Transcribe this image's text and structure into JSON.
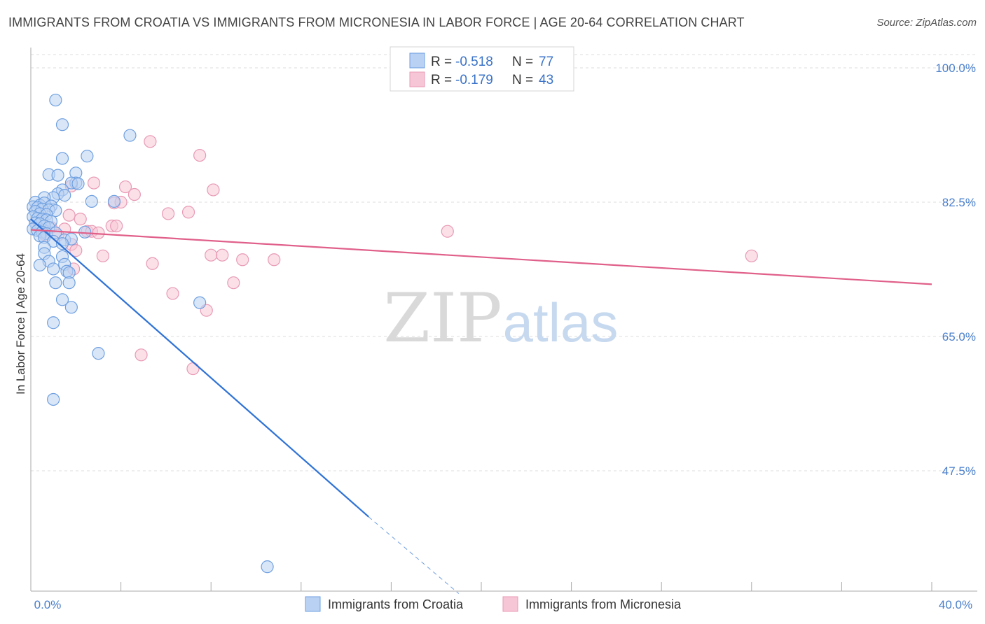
{
  "title": "IMMIGRANTS FROM CROATIA VS IMMIGRANTS FROM MICRONESIA IN LABOR FORCE | AGE 20-64 CORRELATION CHART",
  "source": "Source: ZipAtlas.com",
  "watermark": {
    "zip": "ZIP",
    "atlas": "atlas"
  },
  "chart_data": {
    "type": "scatter",
    "title": "IMMIGRANTS FROM CROATIA VS IMMIGRANTS FROM MICRONESIA IN LABOR FORCE | AGE 20-64 CORRELATION CHART",
    "xlabel": "",
    "ylabel": "In Labor Force | Age 20-64",
    "xlim": [
      0,
      40
    ],
    "ylim": [
      30,
      102
    ],
    "x_tick_labels": {
      "min": "0.0%",
      "max": "40.0%"
    },
    "y_ticks": [
      {
        "value": 100,
        "label": "100.0%"
      },
      {
        "value": 82.5,
        "label": "82.5%"
      },
      {
        "value": 65,
        "label": "65.0%"
      },
      {
        "value": 47.5,
        "label": "47.5%"
      }
    ],
    "legend": {
      "r_label": "R =",
      "n_label": "N ="
    },
    "series": [
      {
        "name": "Immigrants from Croatia",
        "color": "#6fa0e0",
        "fill": "#b9d1f3",
        "line_color": "#2f73d6",
        "R": "-0.518",
        "N": "77",
        "trend": {
          "x0": 0.0,
          "y0": 80.3,
          "x1": 15.0,
          "y1": 41.5,
          "dash_x1": 19.0,
          "dash_y1": 31.5
        },
        "points": [
          [
            1.1,
            95.8
          ],
          [
            1.4,
            92.6
          ],
          [
            4.4,
            91.2
          ],
          [
            1.4,
            88.2
          ],
          [
            2.5,
            88.5
          ],
          [
            0.8,
            86.1
          ],
          [
            1.2,
            86.0
          ],
          [
            2.0,
            86.3
          ],
          [
            2.0,
            85.0
          ],
          [
            1.8,
            85.0
          ],
          [
            2.1,
            84.9
          ],
          [
            1.4,
            84.1
          ],
          [
            1.2,
            83.6
          ],
          [
            1.5,
            83.4
          ],
          [
            1.0,
            83.1
          ],
          [
            0.6,
            83.1
          ],
          [
            0.2,
            82.5
          ],
          [
            0.4,
            82.1
          ],
          [
            0.6,
            82.4
          ],
          [
            0.9,
            82.0
          ],
          [
            2.7,
            82.6
          ],
          [
            3.7,
            82.6
          ],
          [
            0.1,
            81.9
          ],
          [
            0.3,
            81.8
          ],
          [
            0.5,
            81.6
          ],
          [
            0.8,
            81.5
          ],
          [
            1.1,
            81.4
          ],
          [
            0.2,
            81.3
          ],
          [
            0.4,
            81.0
          ],
          [
            0.7,
            80.9
          ],
          [
            0.1,
            80.6
          ],
          [
            0.3,
            80.4
          ],
          [
            0.5,
            80.3
          ],
          [
            0.7,
            80.2
          ],
          [
            0.9,
            80.0
          ],
          [
            0.2,
            79.8
          ],
          [
            0.4,
            79.7
          ],
          [
            0.6,
            79.4
          ],
          [
            0.8,
            79.2
          ],
          [
            0.1,
            79.0
          ],
          [
            0.3,
            78.8
          ],
          [
            0.5,
            78.6
          ],
          [
            0.7,
            78.4
          ],
          [
            1.1,
            78.5
          ],
          [
            0.4,
            78.1
          ],
          [
            0.6,
            77.9
          ],
          [
            1.5,
            77.6
          ],
          [
            1.8,
            77.7
          ],
          [
            1.0,
            77.4
          ],
          [
            1.4,
            77.1
          ],
          [
            0.6,
            76.6
          ],
          [
            2.4,
            78.6
          ],
          [
            0.6,
            75.8
          ],
          [
            1.4,
            75.4
          ],
          [
            0.8,
            74.8
          ],
          [
            1.5,
            74.4
          ],
          [
            0.4,
            74.3
          ],
          [
            1.0,
            73.8
          ],
          [
            1.6,
            73.5
          ],
          [
            1.7,
            73.3
          ],
          [
            1.1,
            72.0
          ],
          [
            1.7,
            72.0
          ],
          [
            1.4,
            69.8
          ],
          [
            1.8,
            68.8
          ],
          [
            7.5,
            69.4
          ],
          [
            1.0,
            66.8
          ],
          [
            3.0,
            62.8
          ],
          [
            1.0,
            56.8
          ],
          [
            10.5,
            35.0
          ]
        ]
      },
      {
        "name": "Immigrants from Micronesia",
        "color": "#e89ab5",
        "fill": "#f7c6d6",
        "line_color": "#e0608a",
        "R": "-0.179",
        "N": "43",
        "trend": {
          "x0": 0.0,
          "y0": 78.9,
          "x1": 40.0,
          "y1": 71.8
        },
        "points": [
          [
            5.3,
            90.4
          ],
          [
            7.5,
            88.6
          ],
          [
            2.8,
            85.0
          ],
          [
            4.2,
            84.5
          ],
          [
            8.1,
            84.1
          ],
          [
            1.8,
            84.6
          ],
          [
            4.6,
            83.5
          ],
          [
            3.7,
            82.4
          ],
          [
            4.0,
            82.5
          ],
          [
            6.1,
            81.0
          ],
          [
            7.0,
            81.2
          ],
          [
            1.7,
            80.8
          ],
          [
            2.2,
            80.3
          ],
          [
            3.6,
            79.4
          ],
          [
            3.8,
            79.4
          ],
          [
            0.3,
            79.3
          ],
          [
            0.9,
            79.2
          ],
          [
            1.5,
            79.0
          ],
          [
            2.5,
            78.7
          ],
          [
            2.7,
            78.7
          ],
          [
            3.0,
            78.5
          ],
          [
            18.5,
            78.7
          ],
          [
            0.6,
            78.3
          ],
          [
            1.2,
            78.2
          ],
          [
            1.8,
            77.0
          ],
          [
            2.0,
            76.2
          ],
          [
            3.2,
            75.5
          ],
          [
            8.0,
            75.6
          ],
          [
            8.5,
            75.6
          ],
          [
            9.4,
            75.0
          ],
          [
            10.8,
            75.0
          ],
          [
            32.0,
            75.5
          ],
          [
            5.4,
            74.5
          ],
          [
            1.9,
            73.8
          ],
          [
            9.0,
            72.0
          ],
          [
            6.3,
            70.6
          ],
          [
            7.8,
            68.4
          ],
          [
            4.9,
            62.6
          ],
          [
            7.2,
            60.8
          ]
        ]
      }
    ]
  }
}
